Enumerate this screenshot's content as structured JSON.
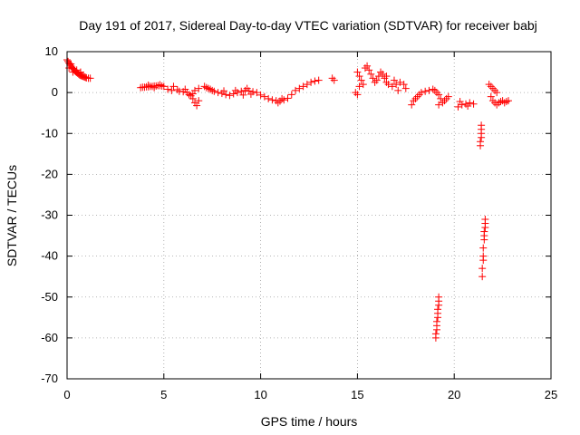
{
  "chart_data": {
    "type": "scatter",
    "title": "Day 191 of 2017, Sidereal Day-to-day VTEC variation (SDTVAR) for receiver babj",
    "xlabel": "GPS time / hours",
    "ylabel": "SDTVAR / TECUs",
    "xlim": [
      0,
      25
    ],
    "ylim": [
      -70,
      10
    ],
    "xticks": [
      0,
      5,
      10,
      15,
      20,
      25
    ],
    "yticks": [
      10,
      0,
      -10,
      -20,
      -30,
      -40,
      -50,
      -60,
      -70
    ],
    "xtick_labels": [
      "0",
      "5",
      "10",
      "15",
      "20",
      "25"
    ],
    "ytick_labels": [
      "10",
      "0",
      "-10",
      "-20",
      "-30",
      "-40",
      "-50",
      "-60",
      "-70"
    ],
    "grid": true,
    "marker": "plus",
    "color": "#ff0000",
    "series": [
      {
        "name": "SDTVAR",
        "points": [
          [
            0.0,
            8.0
          ],
          [
            0.05,
            7.6
          ],
          [
            0.1,
            7.2
          ],
          [
            0.15,
            6.9
          ],
          [
            0.2,
            6.5
          ],
          [
            0.25,
            6.2
          ],
          [
            0.3,
            5.9
          ],
          [
            0.35,
            5.6
          ],
          [
            0.4,
            5.3
          ],
          [
            0.45,
            5.1
          ],
          [
            0.5,
            4.9
          ],
          [
            0.55,
            4.7
          ],
          [
            0.6,
            4.5
          ],
          [
            0.65,
            4.3
          ],
          [
            0.7,
            4.2
          ],
          [
            0.75,
            4.1
          ],
          [
            0.8,
            4.0
          ],
          [
            0.85,
            3.9
          ],
          [
            0.9,
            3.8
          ],
          [
            0.95,
            3.7
          ],
          [
            1.0,
            3.6
          ],
          [
            1.1,
            3.5
          ],
          [
            1.2,
            3.5
          ],
          [
            0.1,
            6.0
          ],
          [
            0.2,
            7.0
          ],
          [
            0.3,
            5.0
          ],
          [
            0.5,
            5.5
          ],
          [
            0.7,
            5.0
          ],
          [
            3.8,
            1.2
          ],
          [
            3.9,
            1.3
          ],
          [
            4.0,
            1.3
          ],
          [
            4.1,
            1.4
          ],
          [
            4.2,
            1.4
          ],
          [
            4.3,
            1.5
          ],
          [
            4.4,
            1.5
          ],
          [
            4.5,
            1.6
          ],
          [
            4.6,
            1.6
          ],
          [
            4.7,
            1.7
          ],
          [
            4.8,
            1.7
          ],
          [
            4.9,
            1.6
          ],
          [
            5.0,
            1.5
          ],
          [
            4.2,
            1.8
          ],
          [
            4.5,
            1.2
          ],
          [
            4.8,
            1.9
          ],
          [
            5.2,
            0.8
          ],
          [
            5.4,
            0.5
          ],
          [
            5.5,
            1.5
          ],
          [
            5.7,
            0.7
          ],
          [
            5.8,
            0.3
          ],
          [
            6.0,
            0.2
          ],
          [
            6.1,
            0.8
          ],
          [
            6.2,
            0.0
          ],
          [
            6.3,
            -0.5
          ],
          [
            6.4,
            -0.8
          ],
          [
            6.5,
            -1.5
          ],
          [
            6.6,
            -2.5
          ],
          [
            6.7,
            -3.2
          ],
          [
            6.8,
            -2.0
          ],
          [
            6.6,
            0.5
          ],
          [
            6.8,
            1.0
          ],
          [
            6.5,
            -0.3
          ],
          [
            7.1,
            1.5
          ],
          [
            7.2,
            1.2
          ],
          [
            7.3,
            1.0
          ],
          [
            7.4,
            0.8
          ],
          [
            7.5,
            0.5
          ],
          [
            7.6,
            0.3
          ],
          [
            7.8,
            0.0
          ],
          [
            8.0,
            -0.2
          ],
          [
            8.2,
            -0.5
          ],
          [
            8.4,
            -0.7
          ],
          [
            8.6,
            -0.3
          ],
          [
            8.8,
            0.0
          ],
          [
            9.0,
            0.3
          ],
          [
            9.2,
            0.5
          ],
          [
            9.4,
            0.4
          ],
          [
            9.6,
            0.2
          ],
          [
            9.8,
            0.0
          ],
          [
            8.1,
            0.4
          ],
          [
            8.7,
            0.5
          ],
          [
            9.1,
            -0.6
          ],
          [
            9.3,
            1.0
          ],
          [
            9.5,
            -0.4
          ],
          [
            10.0,
            -0.6
          ],
          [
            10.2,
            -1.0
          ],
          [
            10.4,
            -1.5
          ],
          [
            10.6,
            -1.8
          ],
          [
            10.8,
            -2.0
          ],
          [
            11.0,
            -2.1
          ],
          [
            11.2,
            -1.8
          ],
          [
            11.4,
            -1.4
          ],
          [
            10.9,
            -2.5
          ],
          [
            11.1,
            -1.5
          ],
          [
            11.6,
            -0.5
          ],
          [
            11.8,
            0.5
          ],
          [
            12.0,
            1.0
          ],
          [
            12.2,
            1.5
          ],
          [
            12.4,
            2.0
          ],
          [
            12.6,
            2.5
          ],
          [
            12.8,
            2.8
          ],
          [
            13.0,
            3.0
          ],
          [
            13.7,
            3.5
          ],
          [
            13.8,
            3.0
          ],
          [
            14.9,
            0.0
          ],
          [
            15.0,
            -0.5
          ],
          [
            15.1,
            1.5
          ],
          [
            15.0,
            5.0
          ],
          [
            15.1,
            4.0
          ],
          [
            15.2,
            3.0
          ],
          [
            15.3,
            2.0
          ],
          [
            15.4,
            6.0
          ],
          [
            15.5,
            6.5
          ],
          [
            15.6,
            5.5
          ],
          [
            15.7,
            4.5
          ],
          [
            15.8,
            3.5
          ],
          [
            15.9,
            2.5
          ],
          [
            16.0,
            3.0
          ],
          [
            16.1,
            4.0
          ],
          [
            16.2,
            5.0
          ],
          [
            16.3,
            4.5
          ],
          [
            16.4,
            3.5
          ],
          [
            16.5,
            2.5
          ],
          [
            16.6,
            2.0
          ],
          [
            16.8,
            1.5
          ],
          [
            17.0,
            2.0
          ],
          [
            17.2,
            2.5
          ],
          [
            17.4,
            2.0
          ],
          [
            17.5,
            1.0
          ],
          [
            16.5,
            4.0
          ],
          [
            16.9,
            3.0
          ],
          [
            17.1,
            0.5
          ],
          [
            17.8,
            -3.0
          ],
          [
            17.9,
            -2.0
          ],
          [
            18.0,
            -1.5
          ],
          [
            18.1,
            -1.0
          ],
          [
            18.2,
            -0.5
          ],
          [
            18.3,
            0.0
          ],
          [
            18.5,
            0.3
          ],
          [
            18.7,
            0.5
          ],
          [
            18.9,
            0.8
          ],
          [
            19.0,
            0.5
          ],
          [
            19.1,
            0.0
          ],
          [
            19.2,
            -0.5
          ],
          [
            19.3,
            -1.5
          ],
          [
            19.2,
            -3.0
          ],
          [
            19.4,
            -2.5
          ],
          [
            19.5,
            -2.0
          ],
          [
            19.6,
            -1.5
          ],
          [
            19.7,
            -1.0
          ],
          [
            19.2,
            -50.0
          ],
          [
            19.2,
            -51.0
          ],
          [
            19.2,
            -52.0
          ],
          [
            19.15,
            -53.0
          ],
          [
            19.15,
            -54.0
          ],
          [
            19.15,
            -55.0
          ],
          [
            19.1,
            -56.0
          ],
          [
            19.1,
            -57.0
          ],
          [
            19.1,
            -58.0
          ],
          [
            19.05,
            -59.0
          ],
          [
            19.05,
            -60.0
          ],
          [
            20.2,
            -3.5
          ],
          [
            20.4,
            -3.0
          ],
          [
            20.6,
            -2.8
          ],
          [
            20.8,
            -2.5
          ],
          [
            21.0,
            -2.8
          ],
          [
            20.3,
            -2.2
          ],
          [
            20.7,
            -3.3
          ],
          [
            21.4,
            -8.0
          ],
          [
            21.4,
            -9.0
          ],
          [
            21.4,
            -10.0
          ],
          [
            21.4,
            -11.0
          ],
          [
            21.35,
            -12.0
          ],
          [
            21.35,
            -13.0
          ],
          [
            21.6,
            -31.0
          ],
          [
            21.6,
            -32.0
          ],
          [
            21.6,
            -33.0
          ],
          [
            21.55,
            -34.0
          ],
          [
            21.55,
            -35.0
          ],
          [
            21.55,
            -36.0
          ],
          [
            21.5,
            -38.0
          ],
          [
            21.5,
            -40.0
          ],
          [
            21.5,
            -41.0
          ],
          [
            21.45,
            -43.0
          ],
          [
            21.45,
            -45.0
          ],
          [
            21.8,
            2.0
          ],
          [
            21.9,
            1.5
          ],
          [
            22.0,
            1.0
          ],
          [
            22.1,
            0.5
          ],
          [
            22.2,
            0.0
          ],
          [
            21.9,
            -1.0
          ],
          [
            22.0,
            -2.0
          ],
          [
            22.1,
            -2.5
          ],
          [
            22.2,
            -3.0
          ],
          [
            22.3,
            -2.5
          ],
          [
            22.4,
            -2.2
          ],
          [
            22.5,
            -2.0
          ],
          [
            22.6,
            -2.5
          ],
          [
            22.7,
            -2.2
          ],
          [
            22.8,
            -2.0
          ]
        ]
      }
    ]
  }
}
